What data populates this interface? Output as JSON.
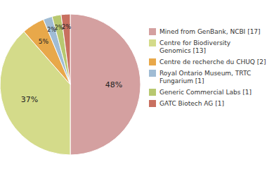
{
  "chart_data": {
    "type": "pie",
    "labels": [
      "Mined from GenBank, NCBI [17]",
      "Centre for Biodiversity\nGenomics [13]",
      "Centre de recherche du CHUQ [2]",
      "Royal Ontario Museum, TRTC\nFungarium [1]",
      "Generic Commercial Labs [1]",
      "GATC Biotech AG [1]"
    ],
    "values": [
      48,
      37,
      5,
      2,
      2,
      2
    ],
    "value_labels": [
      "48%",
      "37%",
      "5%",
      "2%",
      "2%",
      "2%"
    ],
    "data_labels": true,
    "colors": [
      "#d4a0a0",
      "#d4db8a",
      "#e8a84a",
      "#a0bcd4",
      "#b8c870",
      "#c87060"
    ],
    "legend": "right"
  }
}
